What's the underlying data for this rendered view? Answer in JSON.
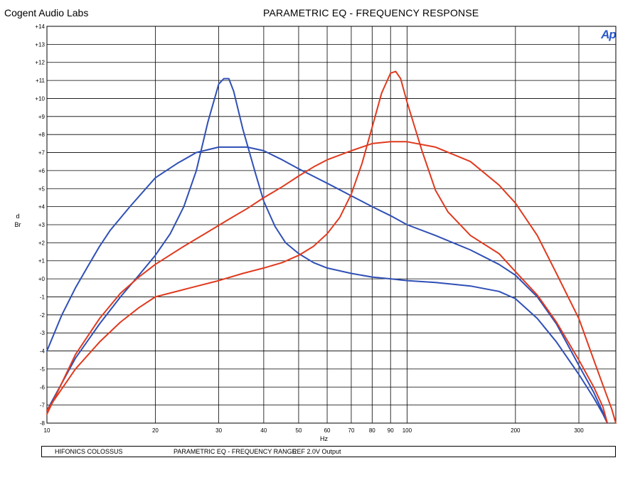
{
  "header": {
    "company": "Cogent Audio Labs",
    "title": "PARAMETRIC EQ  -  FREQUENCY RESPONSE"
  },
  "logo": {
    "text": "Ap",
    "color": "#2a58c9"
  },
  "footer": {
    "device": "HIFONICS COLOSSUS",
    "range": "PARAMETRIC EQ -  FREQUENCY RANGE",
    "ref": "REF 2.0V Output"
  },
  "chart_data": {
    "type": "line",
    "xscale": "log",
    "xlim": [
      10,
      380
    ],
    "ylim": [
      -8,
      14
    ],
    "xlabel": "Hz",
    "ylabel": "dBr",
    "grid": true,
    "x_ticks": [
      10,
      20,
      30,
      40,
      50,
      60,
      70,
      80,
      90,
      100,
      200,
      300
    ],
    "x_tick_labels": [
      "10",
      "20",
      "30",
      "40",
      "50",
      "60",
      "70",
      "80",
      "90",
      "100",
      "200",
      "300"
    ],
    "y_ticks": [
      14,
      13,
      12,
      11,
      10,
      9,
      8,
      7,
      6,
      5,
      4,
      3,
      2,
      1,
      0,
      -1,
      -2,
      -3,
      -4,
      -5,
      -6,
      -7,
      -8
    ],
    "y_tick_labels": [
      "+14",
      "+13",
      "+12",
      "+11",
      "+10",
      "+9",
      "+8",
      "+7",
      "+6",
      "+5",
      "+4",
      "+3",
      "+2",
      "+1",
      "+0",
      "-1",
      "-2",
      "-3",
      "-4",
      "-5",
      "-6",
      "-7",
      "-8"
    ],
    "series": [
      {
        "color": "#2f4fb5",
        "x": [
          10,
          11,
          12,
          13,
          14,
          15,
          17,
          20,
          23,
          26,
          30,
          33,
          36,
          40,
          45,
          50,
          60,
          70,
          80,
          90,
          100,
          120,
          150,
          180,
          200,
          230,
          260,
          300,
          330,
          350,
          360
        ],
        "y": [
          -4,
          -2,
          -0.5,
          0.7,
          1.8,
          2.7,
          4,
          5.6,
          6.4,
          7,
          7.3,
          7.3,
          7.3,
          7.1,
          6.6,
          6.1,
          5.3,
          4.6,
          4,
          3.5,
          3,
          2.4,
          1.6,
          0.8,
          0.2,
          -1,
          -2.5,
          -4.8,
          -6.3,
          -7.4,
          -8
        ]
      },
      {
        "color": "#2f4fb5",
        "x": [
          10,
          12,
          14,
          16,
          18,
          20,
          22,
          24,
          26,
          28,
          30,
          31,
          32,
          33,
          35,
          38,
          40,
          43,
          46,
          50,
          55,
          60,
          70,
          80,
          90,
          100,
          120,
          150,
          180,
          200,
          230,
          260,
          300,
          330,
          350,
          360
        ],
        "y": [
          -7.3,
          -4.4,
          -2.5,
          -1,
          0.2,
          1.3,
          2.5,
          4,
          6,
          8.7,
          10.8,
          11.1,
          11.1,
          10.4,
          8.3,
          5.8,
          4.3,
          2.9,
          2,
          1.4,
          0.9,
          0.6,
          0.3,
          0.1,
          0,
          -0.1,
          -0.2,
          -0.4,
          -0.7,
          -1.1,
          -2.2,
          -3.5,
          -5.3,
          -6.6,
          -7.5,
          -8
        ]
      },
      {
        "color": "#e03a1e",
        "x": [
          10,
          12,
          14,
          16,
          18,
          20,
          24,
          28,
          32,
          36,
          40,
          45,
          50,
          55,
          60,
          70,
          80,
          90,
          100,
          120,
          150,
          180,
          200,
          230,
          260,
          300,
          330,
          350,
          370,
          380
        ],
        "y": [
          -7.5,
          -4.2,
          -2.2,
          -0.8,
          0.1,
          0.8,
          1.8,
          2.6,
          3.3,
          3.9,
          4.5,
          5.1,
          5.7,
          6.2,
          6.6,
          7.1,
          7.5,
          7.6,
          7.6,
          7.3,
          6.5,
          5.2,
          4.2,
          2.4,
          0.3,
          -2.2,
          -4.5,
          -5.9,
          -7.2,
          -8
        ]
      },
      {
        "color": "#e03a1e",
        "x": [
          10,
          12,
          14,
          16,
          18,
          20,
          25,
          30,
          35,
          40,
          45,
          50,
          55,
          60,
          65,
          70,
          75,
          80,
          85,
          90,
          93,
          96,
          100,
          110,
          120,
          130,
          150,
          180,
          200,
          230,
          260,
          300,
          330,
          350,
          360
        ],
        "y": [
          -7.3,
          -5,
          -3.5,
          -2.4,
          -1.6,
          -1,
          -0.5,
          -0.1,
          0.3,
          0.6,
          0.9,
          1.3,
          1.8,
          2.5,
          3.4,
          4.7,
          6.4,
          8.4,
          10.3,
          11.4,
          11.5,
          11.1,
          9.8,
          7.1,
          4.9,
          3.7,
          2.4,
          1.4,
          0.4,
          -0.9,
          -2.4,
          -4.5,
          -6,
          -7.1,
          -8
        ]
      }
    ]
  }
}
